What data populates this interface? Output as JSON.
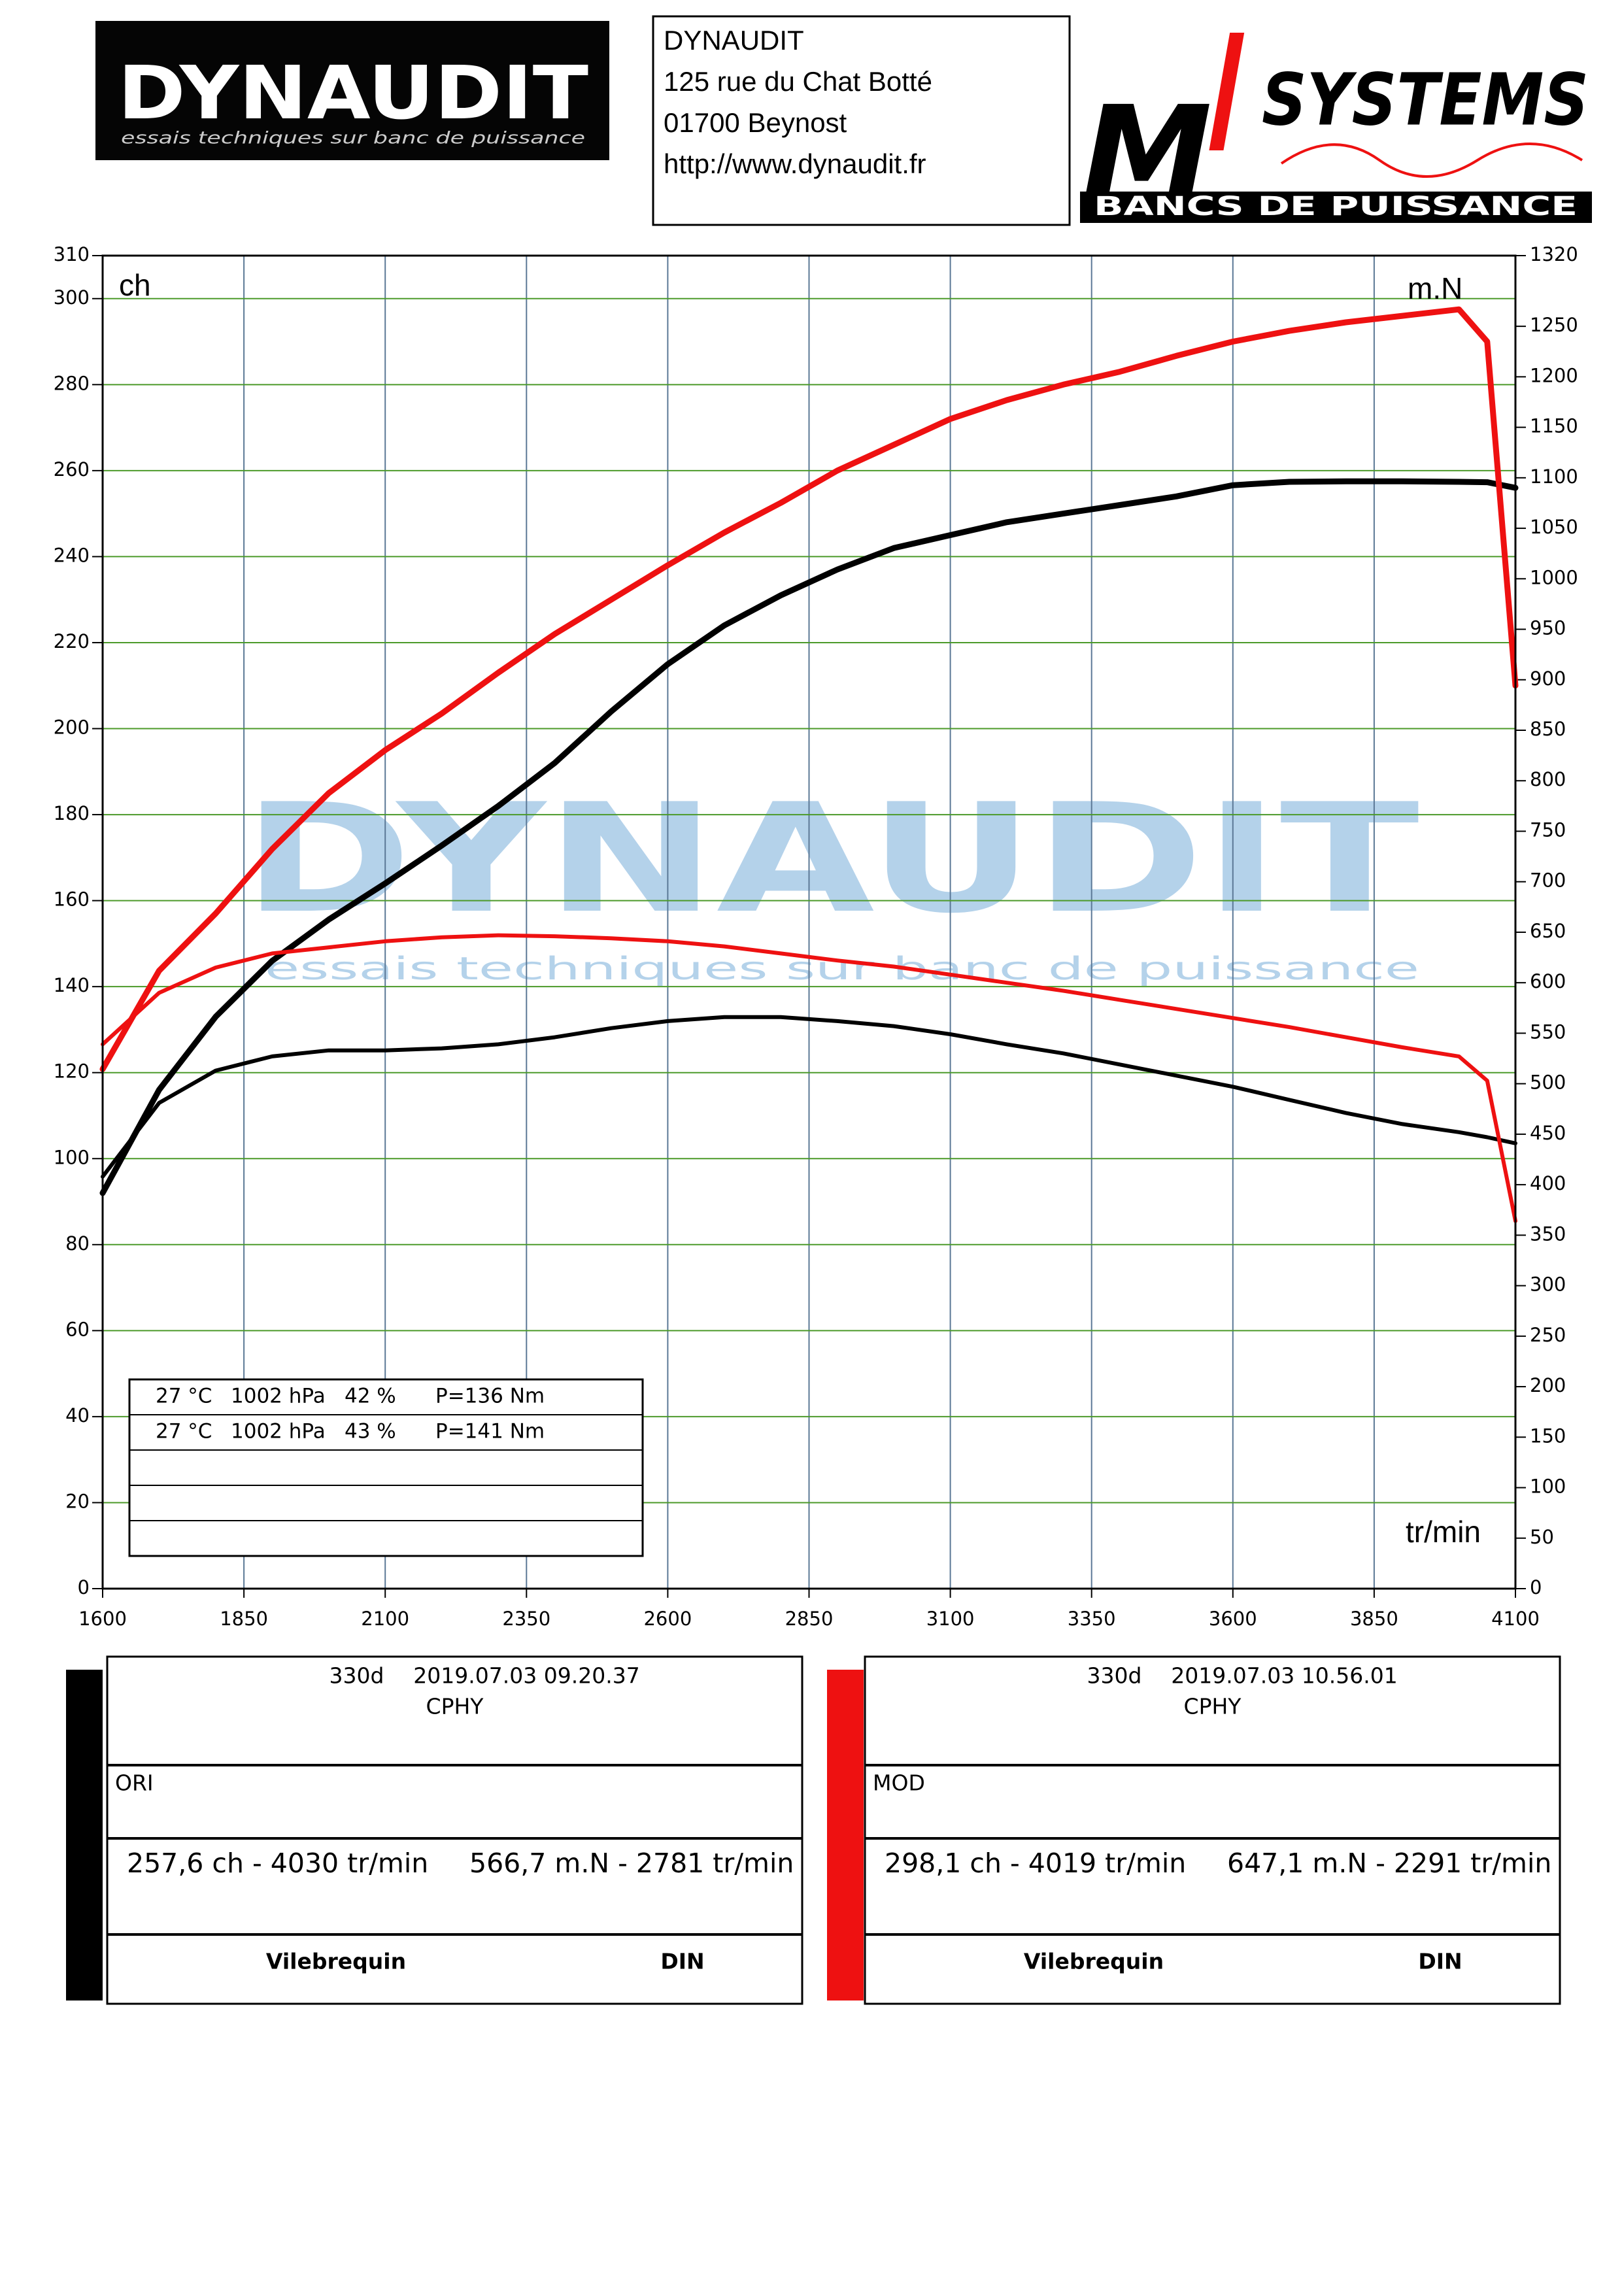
{
  "header": {
    "logo": "DYNAUDIT",
    "logo_tagline": "essais techniques sur banc de puissance",
    "address": [
      "DYNAUDIT",
      "125 rue du Chat Botté",
      "01700 Beynost",
      "http://www.dynaudit.fr"
    ],
    "right_logo": {
      "letter": "M",
      "word": "SYSTEMS",
      "tagline": "BANCS DE PUISSANCE"
    }
  },
  "chart_data": {
    "type": "line",
    "watermark": "DYNAUDIT",
    "watermark_tagline": "essais techniques sur banc de puissance",
    "ylabel": "ch",
    "y2label": "m.N",
    "xlabel": "tr/min",
    "xlim": [
      1600,
      4100
    ],
    "xticks": [
      1600,
      1850,
      2100,
      2350,
      2600,
      2850,
      3100,
      3350,
      3600,
      3850,
      4100
    ],
    "ylim": [
      0,
      310
    ],
    "yticks": [
      0,
      20,
      40,
      60,
      80,
      100,
      120,
      140,
      160,
      180,
      200,
      220,
      240,
      260,
      280,
      300,
      310
    ],
    "y2lim": [
      0,
      1320
    ],
    "y2ticks": [
      0,
      50,
      100,
      150,
      200,
      250,
      300,
      350,
      400,
      450,
      500,
      550,
      600,
      650,
      700,
      750,
      800,
      850,
      900,
      950,
      1000,
      1050,
      1100,
      1150,
      1200,
      1250,
      1320
    ],
    "grid": true,
    "x": [
      1600,
      1700,
      1800,
      1900,
      2000,
      2100,
      2200,
      2300,
      2400,
      2500,
      2600,
      2700,
      2800,
      2900,
      3000,
      3100,
      3200,
      3300,
      3400,
      3500,
      3600,
      3700,
      3800,
      3900,
      4000,
      4050,
      4100
    ],
    "series": [
      {
        "color": "#000000",
        "values": [
          92,
          116,
          133,
          146,
          155.6,
          164,
          172.8,
          182,
          192,
          204,
          215,
          224,
          231,
          237,
          242,
          245,
          248,
          250,
          252,
          254,
          256.6,
          257.4,
          257.5,
          257.5,
          257.4,
          257.3,
          256
        ]
      },
      {
        "color": "#000000",
        "axis": "y2",
        "values": [
          408,
          481,
          513,
          527,
          533,
          533,
          535,
          539,
          546,
          555,
          562,
          566,
          566,
          562,
          557,
          549,
          539,
          530,
          519,
          508,
          497,
          484,
          471,
          460,
          452,
          447,
          441
        ]
      },
      {
        "color": "#ee1111",
        "values": [
          120.8,
          143.7,
          157,
          172,
          185,
          195,
          203.5,
          213,
          222,
          230,
          238,
          245.6,
          252.5,
          260,
          266,
          272,
          276.4,
          280,
          283,
          286.7,
          290,
          292.5,
          294.5,
          296,
          297.5,
          290,
          210
        ]
      },
      {
        "color": "#ee1111",
        "axis": "y2",
        "values": [
          539,
          590,
          615,
          629,
          635,
          641,
          645,
          647,
          646,
          644,
          641,
          636,
          629,
          622,
          616,
          608,
          600,
          592,
          583,
          574,
          565,
          556,
          546,
          536,
          527,
          503,
          364
        ]
      }
    ],
    "conditions": [
      [
        "27 °C",
        "1002 hPa",
        "42 %",
        "P=136 Nm"
      ],
      [
        "27 °C",
        "1002 hPa",
        "43 %",
        "P=141 Nm"
      ]
    ]
  },
  "runs": [
    {
      "color": "#000000",
      "vehicle": "330d",
      "timestamp": "2019.07.03 09.20.37",
      "code": "CPHY",
      "label": "ORI",
      "power": "257,6 ch - 4030 tr/min",
      "torque": "566,7 m.N - 2781 tr/min",
      "shaft": "Vilebrequin",
      "norm": "DIN"
    },
    {
      "color": "#ee1111",
      "vehicle": "330d",
      "timestamp": "2019.07.03 10.56.01",
      "code": "CPHY",
      "label": "MOD",
      "power": "298,1 ch - 4019 tr/min",
      "torque": "647,1 m.N - 2291 tr/min",
      "shaft": "Vilebrequin",
      "norm": "DIN"
    }
  ]
}
